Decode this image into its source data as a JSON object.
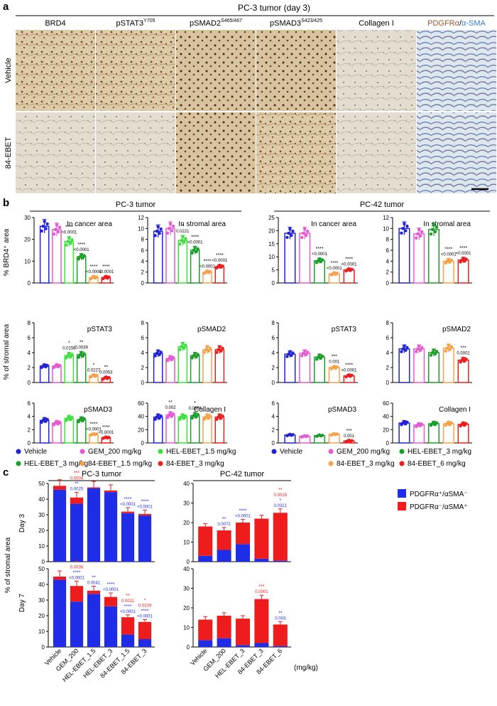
{
  "panel_a": {
    "label": "a",
    "title": "PC-3 tumor (day 3)",
    "stains": [
      "BRD4",
      "pSTAT3",
      "pSMAD2",
      "pSMAD3",
      "Collagen I",
      "PDGFRα/α-SMA"
    ],
    "stain_superscripts": [
      "",
      "Y705",
      "S465/467",
      "S423/425",
      "",
      ""
    ],
    "stain_last_parts": [
      "PDGFRα",
      "/",
      "α-SMA"
    ],
    "rows": [
      "Vehicle",
      "84-EBET"
    ]
  },
  "panel_b": {
    "label": "b",
    "groups": [
      "PC-3 tumor",
      "PC-42 tumor"
    ],
    "ylabel_top": "% BRD4⁺ area",
    "ylabel_lower": "%  of stromal area",
    "charts": [
      {
        "title": "In cancer area",
        "ylim": [
          0,
          30
        ],
        "ticks": [
          "0",
          "10",
          "20",
          "30"
        ],
        "values": [
          26,
          24.5,
          19,
          12,
          2.5,
          2.5
        ],
        "sig": [
          [
            "",
            ""
          ],
          [
            "",
            ""
          ],
          [
            "****",
            "<0.0001"
          ],
          [
            "****",
            "<0.0001"
          ],
          [
            "****",
            "<0.0001"
          ],
          [
            "****",
            "<0.0001"
          ]
        ]
      },
      {
        "title": "In stromal area",
        "ylim": [
          0,
          12
        ],
        "ticks": [
          "0",
          "2",
          "4",
          "6",
          "8",
          "10",
          "12"
        ],
        "values": [
          9.5,
          10,
          7.8,
          6,
          2,
          3
        ],
        "sig": [
          [
            "",
            ""
          ],
          [
            "",
            ""
          ],
          [
            "*",
            "0.0221"
          ],
          [
            "****",
            "<0.0001"
          ],
          [
            "****",
            "<0.0001"
          ],
          [
            "****",
            "<0.0001"
          ]
        ]
      },
      {
        "title": "In cancer area",
        "ylim": [
          0,
          25
        ],
        "ticks": [
          "0",
          "5",
          "10",
          "15",
          "20",
          "25"
        ],
        "values": [
          19,
          19,
          8.5,
          3.5,
          5
        ],
        "sig": [
          [
            "",
            ""
          ],
          [
            "",
            ""
          ],
          [
            "****",
            "<0.0001"
          ],
          [
            "****",
            "<0.0001"
          ],
          [
            "****",
            "<0.0001"
          ]
        ]
      },
      {
        "title": "In stromal area",
        "ylim": [
          0,
          12
        ],
        "ticks": [
          "0",
          "2",
          "4",
          "6",
          "8",
          "10",
          "12"
        ],
        "values": [
          10,
          9,
          9.8,
          4,
          4.2
        ],
        "sig": [
          [
            "",
            ""
          ],
          [
            "",
            ""
          ],
          [
            "",
            ""
          ],
          [
            "****",
            "<0.0001"
          ],
          [
            "****",
            "<0.0001"
          ]
        ]
      },
      {
        "title": "pSTAT3",
        "ylim": [
          0,
          8
        ],
        "ticks": [
          "0",
          "2",
          "4",
          "6",
          "8"
        ],
        "values": [
          2.2,
          2.2,
          3.6,
          3.7,
          0.9,
          0.6
        ],
        "sig": [
          [
            "",
            ""
          ],
          [
            "",
            ""
          ],
          [
            "*",
            "0.0156"
          ],
          [
            "**",
            "0.0039"
          ],
          [
            "*",
            "0.0227"
          ],
          [
            "**",
            "0.0053"
          ]
        ]
      },
      {
        "title": "pSMAD2",
        "ylim": [
          0,
          8
        ],
        "ticks": [
          "0",
          "2",
          "4",
          "6",
          "8"
        ],
        "values": [
          3.9,
          3.2,
          4.8,
          3.6,
          4.4,
          4.4
        ],
        "sig": [
          [
            "",
            ""
          ],
          [
            "",
            ""
          ],
          [
            "",
            ""
          ],
          [
            "",
            ""
          ],
          [
            "",
            ""
          ],
          [
            "",
            ""
          ]
        ]
      },
      {
        "title": "pSTAT3",
        "ylim": [
          0,
          8
        ],
        "ticks": [
          "0",
          "2",
          "4",
          "6",
          "8"
        ],
        "values": [
          3.8,
          3.9,
          3.4,
          2,
          0.9
        ],
        "sig": [
          [
            "",
            ""
          ],
          [
            "",
            ""
          ],
          [
            "",
            ""
          ],
          [
            "***",
            "0.001"
          ],
          [
            "****",
            "<0.0001"
          ]
        ]
      },
      {
        "title": "pSMAD2",
        "ylim": [
          0,
          8
        ],
        "ticks": [
          "0",
          "2",
          "4",
          "6",
          "8"
        ],
        "values": [
          4.5,
          4.5,
          4,
          4.6,
          3
        ],
        "sig": [
          [
            "",
            ""
          ],
          [
            "",
            ""
          ],
          [
            "",
            ""
          ],
          [
            "",
            ""
          ],
          [
            "***",
            "0.0001"
          ]
        ]
      },
      {
        "title": "pSMAD3",
        "ylim": [
          0,
          6
        ],
        "ticks": [
          "0",
          "2",
          "4",
          "6"
        ],
        "values": [
          3.4,
          3,
          3.7,
          3.5,
          1.3,
          0.8
        ],
        "sig": [
          [
            "",
            ""
          ],
          [
            "",
            ""
          ],
          [
            "",
            ""
          ],
          [
            "",
            ""
          ],
          [
            "****",
            "<0.0001"
          ],
          [
            "****",
            "<0.0001"
          ]
        ]
      },
      {
        "title": "Collagen I",
        "ylim": [
          0,
          60
        ],
        "ticks": [
          "0",
          "20",
          "40",
          "60"
        ],
        "values": [
          39,
          42,
          39,
          41,
          39,
          39
        ],
        "sig": [
          [
            "",
            ""
          ],
          [
            "**",
            "0.002"
          ],
          [
            "",
            ""
          ],
          [
            "*",
            "0.0386"
          ],
          [
            "",
            ""
          ],
          [
            "",
            ""
          ]
        ]
      },
      {
        "title": "pSMAD3",
        "ylim": [
          0,
          6
        ],
        "ticks": [
          "0",
          "2",
          "4",
          "6"
        ],
        "values": [
          1.2,
          1,
          1.1,
          1.3,
          0.3
        ],
        "sig": [
          [
            "",
            ""
          ],
          [
            "",
            ""
          ],
          [
            "",
            ""
          ],
          [
            "",
            ""
          ],
          [
            "***",
            "0.001"
          ]
        ]
      },
      {
        "title": "Collagen I",
        "ylim": [
          0,
          60
        ],
        "ticks": [
          "0",
          "20",
          "40",
          "60"
        ],
        "values": [
          30,
          27,
          29,
          29,
          28
        ],
        "sig": [
          [
            "",
            ""
          ],
          [
            "",
            ""
          ],
          [
            "",
            ""
          ],
          [
            "",
            ""
          ],
          [
            "",
            ""
          ]
        ]
      }
    ],
    "legend": [
      {
        "label": "Vehicle",
        "color": "#2121d6"
      },
      {
        "label": "GEM_200 mg/kg",
        "color": "#e65ad1"
      },
      {
        "label": "HEL-EBET_1.5 mg/kg",
        "color": "#3ce03c"
      },
      {
        "label": "HEL-EBET_3 mg/kg",
        "color": "#1a9e2a"
      },
      {
        "label": "84-EBET_1.5 mg/kg",
        "color": "#f5a24a"
      },
      {
        "label": "84-EBET_3 mg/kg",
        "color": "#ee1c1c"
      },
      {
        "label": "Vehicle",
        "color": "#2121d6"
      },
      {
        "label": "GEM_200 mg/kg",
        "color": "#e65ad1"
      },
      {
        "label": "HEL-EBET_3 mg/kg",
        "color": "#1a9e2a"
      },
      {
        "label": "84-EBET_3 mg/kg",
        "color": "#f5a24a"
      },
      {
        "label": "84-EBET_6 mg/kg",
        "color": "#ee1c1c"
      }
    ]
  },
  "panel_c": {
    "label": "c",
    "groups": [
      "PC-3 tumor",
      "PC-42 tumor"
    ],
    "row_labels": [
      "Day 3",
      "Day 7"
    ],
    "ylabel": "% of stromal area",
    "xlabel": "(mg/kg)",
    "legend": [
      {
        "label": "PDGFRα⁺/αSMA⁻",
        "color": "#1f2ee6"
      },
      {
        "label": "PDGFRα⁻/αSMA⁺",
        "color": "#ee1c1c"
      }
    ],
    "ticks": [
      "0",
      "10",
      "20",
      "30",
      "40",
      "50"
    ],
    "ticks_right": [
      "0",
      "10",
      "20",
      "30",
      "40"
    ],
    "categories_left": [
      "Vehicle",
      "GEM_200",
      "HEL-EBET_1.5",
      "HEL-EBET_3",
      "84-EBET_1.5",
      "84-EBET_3"
    ],
    "categories_right": [
      "Vehicle",
      "GEM_200",
      "HEL-EBET_3",
      "84-EBET_3",
      "84-EBET_6"
    ]
  },
  "chart_data": [
    {
      "type": "bar",
      "title": "PC-3 tumor Day 3",
      "categories": [
        "Vehicle",
        "GEM_200",
        "HEL-EBET_1.5",
        "HEL-EBET_3",
        "84-EBET_1.5",
        "84-EBET_3"
      ],
      "series": [
        {
          "name": "PDGFRα⁺/αSMA⁻",
          "values": [
            46,
            37,
            47,
            44.5,
            31,
            29.5
          ]
        },
        {
          "name": "PDGFRα⁻/αSMA⁺",
          "values": [
            2.5,
            4,
            0.5,
            1,
            1,
            1
          ]
        }
      ],
      "ylim": [
        0,
        50
      ],
      "annotations": [
        [
          "",
          "",
          "",
          ""
        ],
        [
          "***",
          "0.0004",
          "**",
          "0.0025"
        ],
        [
          "",
          "",
          "",
          ""
        ],
        [
          "",
          "",
          "",
          ""
        ],
        [
          "",
          "",
          "****",
          "<0.0001"
        ],
        [
          "",
          "",
          "****",
          "<0.0001"
        ]
      ]
    },
    {
      "type": "bar",
      "title": "PC-42 tumor Day 3",
      "categories": [
        "Vehicle",
        "GEM_200",
        "HEL-EBET_3",
        "84-EBET_3",
        "84-EBET_6"
      ],
      "series": [
        {
          "name": "PDGFRα⁺/αSMA⁻",
          "values": [
            3,
            6,
            9,
            1.5,
            0.5
          ]
        },
        {
          "name": "PDGFRα⁻/αSMA⁺",
          "values": [
            15,
            10,
            11,
            20.5,
            24.5
          ]
        }
      ],
      "ylim": [
        0,
        40
      ],
      "annotations": [
        [
          "",
          "",
          "",
          ""
        ],
        [
          "",
          "",
          "**",
          "0.0072"
        ],
        [
          "",
          "",
          "****",
          "<0.0001"
        ],
        [
          "",
          "",
          "",
          ""
        ],
        [
          "**",
          "0.0018",
          "*",
          "0.0321"
        ]
      ]
    },
    {
      "type": "bar",
      "title": "PC-3 tumor Day 7",
      "categories": [
        "Vehicle",
        "GEM_200",
        "HEL-EBET_1.5",
        "HEL-EBET_3",
        "84-EBET_1.5",
        "84-EBET_3"
      ],
      "series": [
        {
          "name": "PDGFRα⁺/αSMA⁻",
          "values": [
            43,
            29,
            34,
            26,
            8,
            5
          ]
        },
        {
          "name": "PDGFRα⁻/αSMA⁺",
          "values": [
            2,
            10,
            2,
            6,
            11,
            11
          ]
        }
      ],
      "ylim": [
        0,
        50
      ],
      "annotations": [
        [
          "",
          "",
          "",
          ""
        ],
        [
          "**",
          "0.0038",
          "****",
          "<0.0001"
        ],
        [
          "",
          "",
          "**",
          "0.0041"
        ],
        [
          "",
          "",
          "****",
          "<0.0001"
        ],
        [
          "**",
          "0.0011",
          "****",
          "<0.0001"
        ],
        [
          "*",
          "0.0109",
          "****",
          "<0.0001"
        ]
      ]
    },
    {
      "type": "bar",
      "title": "PC-42 tumor Day 7",
      "categories": [
        "Vehicle",
        "GEM_200",
        "HEL-EBET_3",
        "84-EBET_3",
        "84-EBET_6"
      ],
      "series": [
        {
          "name": "PDGFRα⁺/αSMA⁻",
          "values": [
            3.5,
            4.5,
            1,
            2,
            0.5
          ]
        },
        {
          "name": "PDGFRα⁻/αSMA⁺",
          "values": [
            10.5,
            11.5,
            13.5,
            22.5,
            11
          ]
        }
      ],
      "ylim": [
        0,
        40
      ],
      "annotations": [
        [
          "",
          "",
          "",
          ""
        ],
        [
          "",
          "",
          "",
          ""
        ],
        [
          "",
          "",
          "",
          ""
        ],
        [
          "***",
          "0.0001",
          "",
          ""
        ],
        [
          "",
          "",
          "**",
          "0.003"
        ]
      ]
    }
  ]
}
